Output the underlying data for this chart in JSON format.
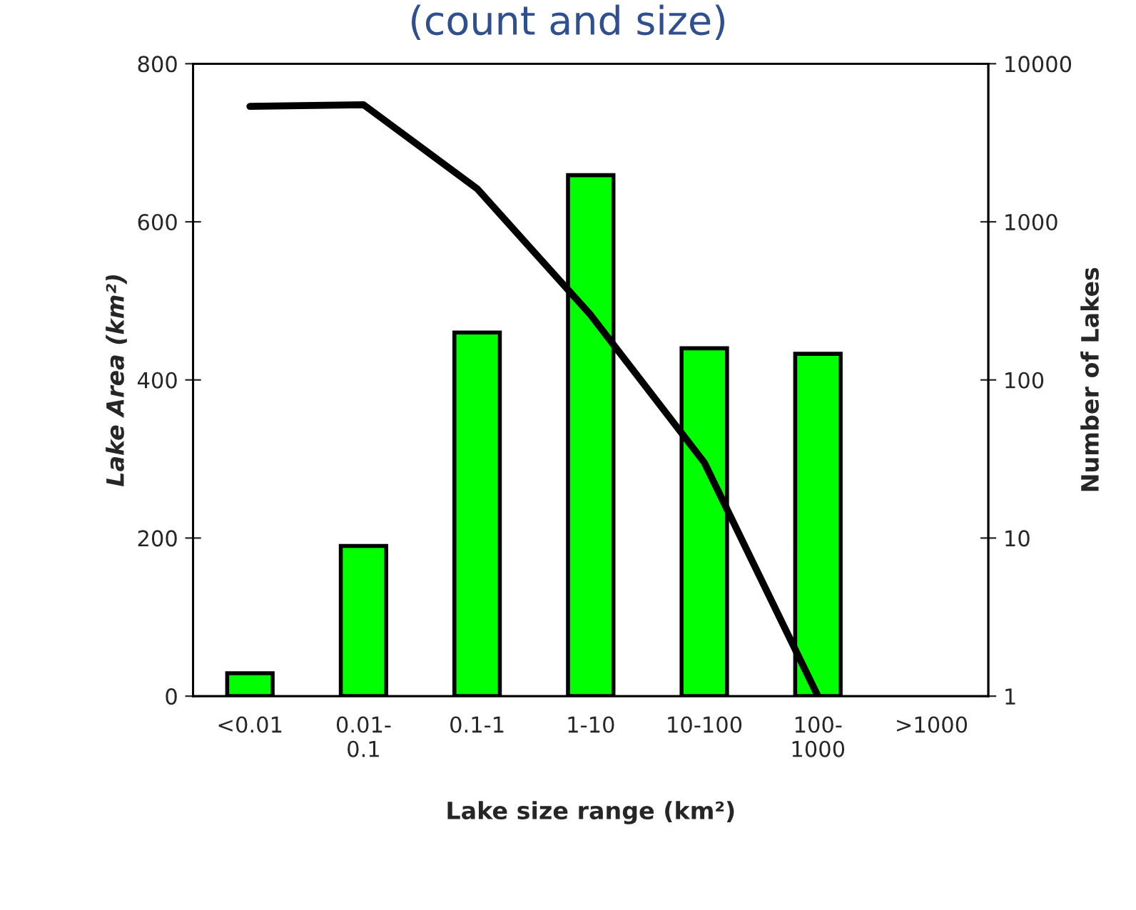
{
  "chart_data": {
    "type": "bar",
    "title": "(count and size)",
    "xlabel": "Lake size range (km²)",
    "ylabel": "Lake Area (km²)",
    "y2label": "Number of Lakes",
    "categories": [
      "<0.01",
      "0.01-\n0.1",
      "0.1-1",
      "1-10",
      "10-100",
      "100-\n1000",
      ">1000"
    ],
    "series": [
      {
        "color": "#00ff00",
        "values": [
          29,
          190,
          460,
          659,
          440,
          433,
          null
        ]
      },
      {
        "type": "line",
        "axis": "y2",
        "color": "#000000",
        "values": [
          5370,
          5500,
          1620,
          257,
          30,
          1,
          null
        ]
      }
    ],
    "ylim": [
      0,
      800
    ],
    "yticks": [
      0,
      200,
      400,
      600,
      800
    ],
    "y2lim": [
      1,
      10000
    ],
    "y2ticks": [
      1,
      10,
      100,
      1000,
      10000
    ],
    "log": "y2",
    "grid": false,
    "legend": false,
    "marker": "none",
    "line_style": "solid"
  }
}
